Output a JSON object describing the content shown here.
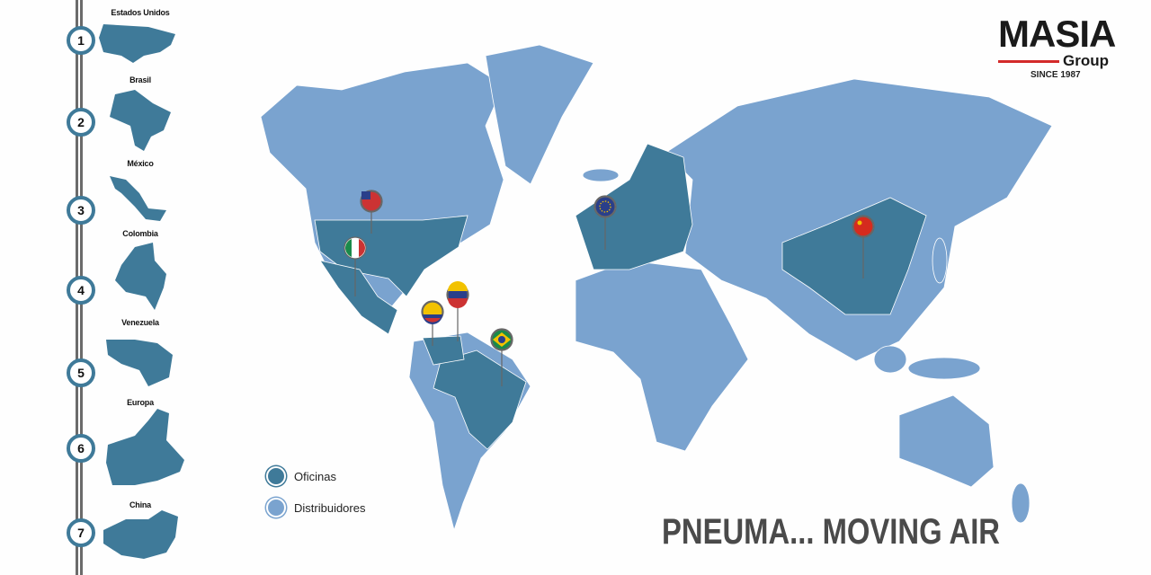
{
  "colors": {
    "offices": "#3f7a99",
    "distributors": "#7aa3cf",
    "accent": "#d32a2a"
  },
  "brand": {
    "name": "MASIA",
    "sub": "Group",
    "since": "SINCE 1987"
  },
  "sidebar": {
    "items": [
      {
        "number": "1",
        "label": "Estados Unidos"
      },
      {
        "number": "2",
        "label": "Brasil"
      },
      {
        "number": "3",
        "label": "México"
      },
      {
        "number": "4",
        "label": "Colombia"
      },
      {
        "number": "5",
        "label": "Venezuela"
      },
      {
        "number": "6",
        "label": "Europa"
      },
      {
        "number": "7",
        "label": "China"
      }
    ]
  },
  "legend": {
    "offices": "Oficinas",
    "distributors": "Distribuidores"
  },
  "slogan": "PNEUMA... MOVING AIR",
  "pins": [
    "usa-flag",
    "mexico-flag",
    "venezuela-flag",
    "colombia-flag",
    "brazil-flag",
    "eu-flag",
    "china-flag"
  ]
}
